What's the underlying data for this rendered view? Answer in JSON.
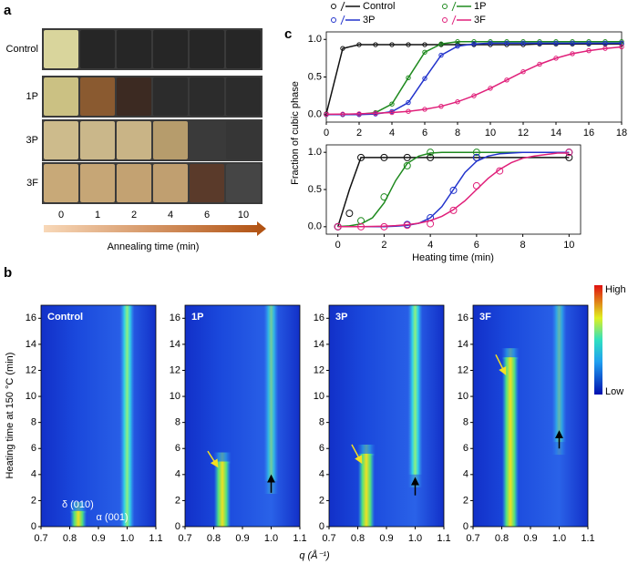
{
  "figure": {
    "panels": [
      "a",
      "b",
      "c"
    ],
    "heatmap_xlabel": "q (Å⁻¹)",
    "heatmap_ylabel": "Heating time at 150 °C (min)",
    "colorbar_high": "High",
    "colorbar_low": "Low",
    "cubic_ylabel": "Fraction of cubic phase",
    "cubic_xlabel": "Heating time (min)"
  },
  "photos": {
    "rows": [
      "Control",
      "1P",
      "3P",
      "3F"
    ],
    "times": [
      0,
      1,
      2,
      4,
      6,
      10
    ],
    "xlabel": "Annealing time (min)"
  },
  "chart_data": [
    {
      "type": "heatmap",
      "title": "Control",
      "annotations": [
        "δ (010)",
        "α (001)"
      ],
      "xlim": [
        0.7,
        1.1
      ],
      "xticks": [
        0.7,
        0.8,
        0.9,
        {
          "value": 1,
          "label": "1.0"
        },
        1.1
      ],
      "ylim": [
        0,
        17
      ],
      "yticks": [
        0,
        2,
        4,
        6,
        8,
        10,
        12,
        14,
        16
      ]
    },
    {
      "type": "heatmap",
      "title": "1P",
      "xlim": [
        0.7,
        1.1
      ],
      "xticks": [
        0.7,
        0.8,
        0.9,
        {
          "value": 1,
          "label": "1.0"
        },
        1.1
      ],
      "ylim": [
        0,
        17
      ],
      "yticks": [
        0,
        2,
        4,
        6,
        8,
        10,
        12,
        14,
        16
      ]
    },
    {
      "type": "heatmap",
      "title": "3P",
      "xlim": [
        0.7,
        1.1
      ],
      "xticks": [
        0.7,
        0.8,
        0.9,
        {
          "value": 1,
          "label": "1.0"
        },
        1.1
      ],
      "ylim": [
        0,
        17
      ],
      "yticks": [
        0,
        2,
        4,
        6,
        8,
        10,
        12,
        14,
        16
      ]
    },
    {
      "type": "heatmap",
      "title": "3F",
      "xlim": [
        0.7,
        1.1
      ],
      "xticks": [
        0.7,
        0.8,
        0.9,
        {
          "value": 1,
          "label": "1.0"
        },
        1.1
      ],
      "ylim": [
        0,
        17
      ],
      "yticks": [
        0,
        2,
        4,
        6,
        8,
        10,
        12,
        14,
        16
      ]
    },
    {
      "type": "line",
      "x": [
        0,
        1,
        2,
        3,
        4,
        5,
        6,
        7,
        8,
        9,
        10,
        11,
        12,
        13,
        14,
        15,
        16,
        17,
        18
      ],
      "xlim": [
        0,
        18
      ],
      "xticks": [
        0,
        2,
        4,
        6,
        8,
        10,
        12,
        14,
        16,
        18
      ],
      "ylim": [
        -0.1,
        1.1
      ],
      "yticks": [
        {
          "value": 0,
          "label": "0.0"
        },
        0.5,
        {
          "value": 1,
          "label": "1.0"
        }
      ],
      "series": [
        {
          "name": "Control",
          "color": "#111111",
          "values": [
            0.01,
            0.88,
            0.93,
            0.93,
            0.93,
            0.93,
            0.93,
            0.93,
            0.93,
            0.93,
            0.93,
            0.93,
            0.93,
            0.94,
            0.94,
            0.94,
            0.94,
            0.94,
            0.94
          ]
        },
        {
          "name": "1P",
          "color": "#1f8a1f",
          "values": [
            0,
            0,
            0.004,
            0.026,
            0.14,
            0.49,
            0.83,
            0.94,
            0.97,
            0.97,
            0.97,
            0.97,
            0.97,
            0.97,
            0.97,
            0.97,
            0.97,
            0.97,
            0.97
          ]
        },
        {
          "name": "3P",
          "color": "#2233cc",
          "values": [
            0,
            0,
            0,
            0.008,
            0.04,
            0.16,
            0.48,
            0.79,
            0.91,
            0.94,
            0.95,
            0.95,
            0.95,
            0.95,
            0.95,
            0.95,
            0.95,
            0.95,
            0.95
          ]
        },
        {
          "name": "3F",
          "color": "#e0207a",
          "values": [
            0.004,
            0.006,
            0.01,
            0.017,
            0.027,
            0.043,
            0.07,
            0.11,
            0.17,
            0.25,
            0.35,
            0.46,
            0.57,
            0.67,
            0.75,
            0.81,
            0.85,
            0.88,
            0.9
          ]
        }
      ]
    },
    {
      "type": "line",
      "fit_x": [
        0,
        0.5,
        1,
        1.5,
        2,
        2.5,
        3,
        3.5,
        4,
        4.5,
        5,
        5.5,
        6,
        6.5,
        7,
        7.5,
        8,
        8.5,
        9,
        9.5,
        10
      ],
      "xlim": [
        -0.5,
        10.5
      ],
      "xticks": [
        0,
        2,
        4,
        6,
        8,
        10
      ],
      "ylim": [
        -0.1,
        1.1
      ],
      "yticks": [
        {
          "value": 0,
          "label": "0.0"
        },
        0.5,
        {
          "value": 1,
          "label": "1.0"
        }
      ],
      "series": [
        {
          "color": "#111111",
          "x": [
            0,
            0.5,
            1,
            2,
            3,
            4,
            6,
            10
          ],
          "values": [
            0,
            0.18,
            0.93,
            0.93,
            0.93,
            0.93,
            0.93,
            0.93
          ],
          "fit": [
            0,
            0.5,
            0.93,
            0.93,
            0.93,
            0.93,
            0.93,
            0.93,
            0.93,
            0.93,
            0.93,
            0.93,
            0.93,
            0.93,
            0.93,
            0.93,
            0.93,
            0.93,
            0.93,
            0.93,
            0.93
          ]
        },
        {
          "color": "#1f8a1f",
          "x": [
            0,
            1,
            2,
            3,
            4,
            6,
            10
          ],
          "values": [
            0,
            0.08,
            0.4,
            0.82,
            1,
            1,
            1
          ],
          "fit": [
            0.003,
            0.011,
            0.037,
            0.12,
            0.32,
            0.62,
            0.85,
            0.95,
            0.99,
            1,
            1,
            1,
            1,
            1,
            1,
            1,
            1,
            1,
            1,
            1,
            1
          ]
        },
        {
          "color": "#2233cc",
          "x": [
            0,
            3,
            4,
            5,
            6,
            10
          ],
          "values": [
            0,
            0.03,
            0.12,
            0.49,
            0.93,
            1
          ],
          "fit": [
            0,
            0,
            0,
            0,
            0,
            0.007,
            0.018,
            0.047,
            0.12,
            0.27,
            0.5,
            0.73,
            0.88,
            0.95,
            0.98,
            0.99,
            1,
            1,
            1,
            1,
            1
          ]
        },
        {
          "color": "#e0207a",
          "x": [
            0,
            1,
            2,
            3,
            4,
            5,
            6,
            7,
            10
          ],
          "values": [
            0,
            0,
            0,
            0.02,
            0.04,
            0.22,
            0.55,
            0.75,
            1
          ],
          "fit": [
            0.001,
            0.001,
            0.002,
            0.004,
            0.008,
            0.015,
            0.027,
            0.047,
            0.083,
            0.14,
            0.23,
            0.35,
            0.5,
            0.65,
            0.77,
            0.86,
            0.92,
            0.95,
            0.97,
            0.99,
            0.99
          ]
        }
      ]
    }
  ]
}
